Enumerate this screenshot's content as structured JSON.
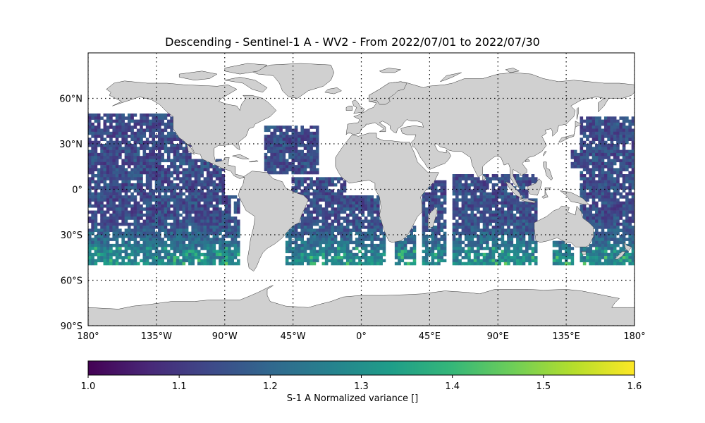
{
  "title": "Descending - Sentinel-1 A - WV2 - From 2022/07/01 to 2022/07/30",
  "map": {
    "projection": "PlateCarree",
    "lon_range": [
      -180,
      180
    ],
    "lat_range": [
      -90,
      90
    ],
    "land_color": "#d0d0d0",
    "ocean_color": "#ffffff",
    "data_lat_range": [
      -50,
      50
    ],
    "lon_ticks": [
      {
        "lon": -180,
        "label": "180°"
      },
      {
        "lon": -135,
        "label": "135°W"
      },
      {
        "lon": -90,
        "label": "90°W"
      },
      {
        "lon": -45,
        "label": "45°W"
      },
      {
        "lon": 0,
        "label": "0°"
      },
      {
        "lon": 45,
        "label": "45°E"
      },
      {
        "lon": 90,
        "label": "90°E"
      },
      {
        "lon": 135,
        "label": "135°E"
      },
      {
        "lon": 180,
        "label": "180°"
      }
    ],
    "lat_ticks": [
      {
        "lat": 60,
        "label": "60°N"
      },
      {
        "lat": 30,
        "label": "30°N"
      },
      {
        "lat": 0,
        "label": "0°"
      },
      {
        "lat": -30,
        "label": "30°S"
      },
      {
        "lat": -60,
        "label": "60°S"
      },
      {
        "lat": -90,
        "label": "90°S"
      }
    ],
    "gridlines": "dotted"
  },
  "colorbar": {
    "colormap": "viridis",
    "min": 1.0,
    "max": 1.6,
    "ticks": [
      "1.0",
      "1.1",
      "1.2",
      "1.3",
      "1.4",
      "1.5",
      "1.6"
    ],
    "label": "S-1 A Normalized variance []",
    "stops": [
      "#440154",
      "#482878",
      "#3e4989",
      "#31688e",
      "#26828e",
      "#1f9e89",
      "#35b779",
      "#6ece58",
      "#b5de2b",
      "#fde725"
    ]
  }
}
